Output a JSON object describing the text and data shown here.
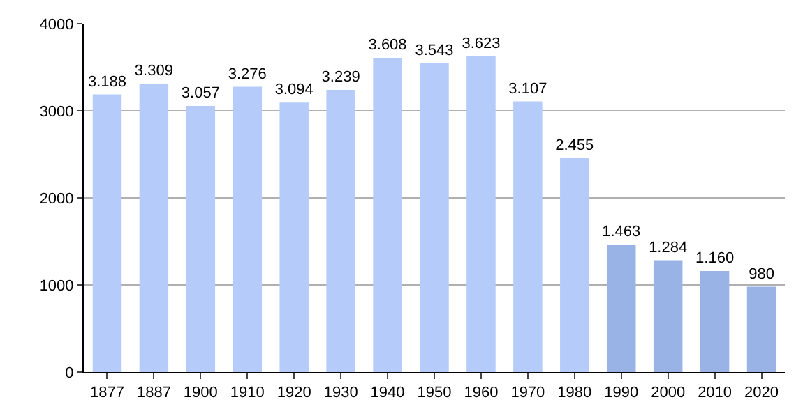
{
  "chart_data": {
    "type": "bar",
    "categories": [
      "1877",
      "1887",
      "1900",
      "1910",
      "1920",
      "1930",
      "1940",
      "1950",
      "1960",
      "1970",
      "1980",
      "1990",
      "2000",
      "2010",
      "2020"
    ],
    "values": [
      3188,
      3309,
      3057,
      3276,
      3094,
      3239,
      3608,
      3543,
      3623,
      3107,
      2455,
      1463,
      1284,
      1160,
      980
    ],
    "colors": [
      "#b5cbf9",
      "#b5cbf9",
      "#b5cbf9",
      "#b5cbf9",
      "#b5cbf9",
      "#b5cbf9",
      "#b5cbf9",
      "#b5cbf9",
      "#b5cbf9",
      "#b5cbf9",
      "#b5cbf9",
      "#99b3e6",
      "#99b3e6",
      "#99b3e6",
      "#99b3e6"
    ],
    "value_labels": [
      "3.188",
      "3.309",
      "3.057",
      "3.276",
      "3.094",
      "3.239",
      "3.608",
      "3.543",
      "3.623",
      "3.107",
      "2.455",
      "1.463",
      "1.284",
      "1.160",
      "980"
    ],
    "ylim": [
      0,
      4000
    ],
    "yticks": [
      0,
      1000,
      2000,
      3000,
      4000
    ],
    "grid": "y"
  }
}
